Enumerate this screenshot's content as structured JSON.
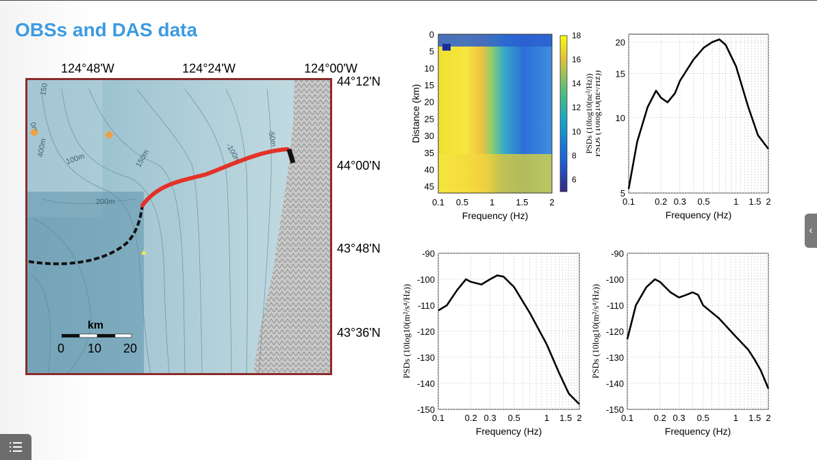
{
  "slide": {
    "title": "OBSs and DAS data"
  },
  "map": {
    "lon_labels": [
      "124°48'W",
      "124°24'W",
      "124°00'W"
    ],
    "lat_labels": [
      "44°12'N",
      "44°00'N",
      "43°48'N",
      "43°36'N"
    ],
    "contours": [
      "150",
      "400m",
      "100m",
      "150m",
      "200m",
      "-100m",
      "-50m",
      "0m"
    ],
    "scale": {
      "unit": "km",
      "ticks": [
        "0",
        "10",
        "20"
      ]
    }
  },
  "chart_data": [
    {
      "type": "heatmap",
      "xlabel": "Frequency (Hz)",
      "ylabel": "Distance (km)",
      "x_ticks": [
        "0.1",
        "0.5",
        "1",
        "1.5",
        "2"
      ],
      "y_ticks": [
        "0",
        "5",
        "10",
        "15",
        "20",
        "25",
        "30",
        "35",
        "40",
        "45"
      ],
      "colorbar": {
        "ticks": [
          "18",
          "16",
          "14",
          "12",
          "10",
          "8",
          "6"
        ],
        "label": "PSDs (10log10(nε²/Hz))",
        "range": [
          5,
          18
        ]
      }
    },
    {
      "type": "line",
      "xlabel": "Frequency (Hz)",
      "ylabel": "PSDs (10log10(nε²/Hz))",
      "x_ticks": [
        "0.1",
        "0.2",
        "0.3",
        "0.5",
        "1",
        "1.5",
        "2"
      ],
      "y_ticks": [
        "20",
        "15",
        "10",
        "5"
      ],
      "series": [
        {
          "x": [
            0.1,
            0.12,
            0.15,
            0.18,
            0.2,
            0.23,
            0.27,
            0.3,
            0.4,
            0.5,
            0.6,
            0.7,
            0.8,
            1.0,
            1.3,
            1.6,
            2.0
          ],
          "y": [
            5.2,
            8.0,
            11.0,
            12.8,
            12.0,
            11.5,
            12.5,
            14.0,
            17.0,
            19.0,
            20.0,
            20.5,
            19.5,
            16.0,
            11.0,
            8.5,
            7.5
          ]
        }
      ]
    },
    {
      "type": "line",
      "xlabel": "Frequency (Hz)",
      "ylabel": "PSDs (10log10(m²/s⁴/Hz))",
      "x_ticks": [
        "0.1",
        "0.2",
        "0.3",
        "0.5",
        "1",
        "1.5",
        "2"
      ],
      "y_ticks": [
        "-90",
        "-100",
        "-110",
        "-120",
        "-130",
        "-140",
        "-150"
      ],
      "series": [
        {
          "x": [
            0.1,
            0.12,
            0.15,
            0.18,
            0.2,
            0.25,
            0.3,
            0.35,
            0.4,
            0.5,
            0.7,
            1.0,
            1.3,
            1.6,
            2.0
          ],
          "y": [
            -112,
            -110,
            -104,
            -100,
            -101,
            -102,
            -100,
            -98.5,
            -99,
            -103,
            -113,
            -125,
            -136,
            -144,
            -148
          ]
        }
      ]
    },
    {
      "type": "line",
      "xlabel": "Frequency (Hz)",
      "ylabel": "PSDs (10log10(m²/s⁴/Hz))",
      "x_ticks": [
        "0.1",
        "0.2",
        "0.3",
        "0.5",
        "1",
        "1.5",
        "2"
      ],
      "y_ticks": [
        "-90",
        "-100",
        "-110",
        "-120",
        "-130",
        "-140",
        "-150"
      ],
      "series": [
        {
          "x": [
            0.1,
            0.12,
            0.15,
            0.18,
            0.2,
            0.25,
            0.3,
            0.35,
            0.4,
            0.45,
            0.5,
            0.7,
            1.0,
            1.3,
            1.5,
            1.7,
            2.0
          ],
          "y": [
            -123,
            -110,
            -103,
            -100,
            -101,
            -105,
            -107,
            -106,
            -105,
            -106,
            -110,
            -115,
            -122,
            -127,
            -131,
            -135,
            -142
          ]
        }
      ]
    }
  ]
}
